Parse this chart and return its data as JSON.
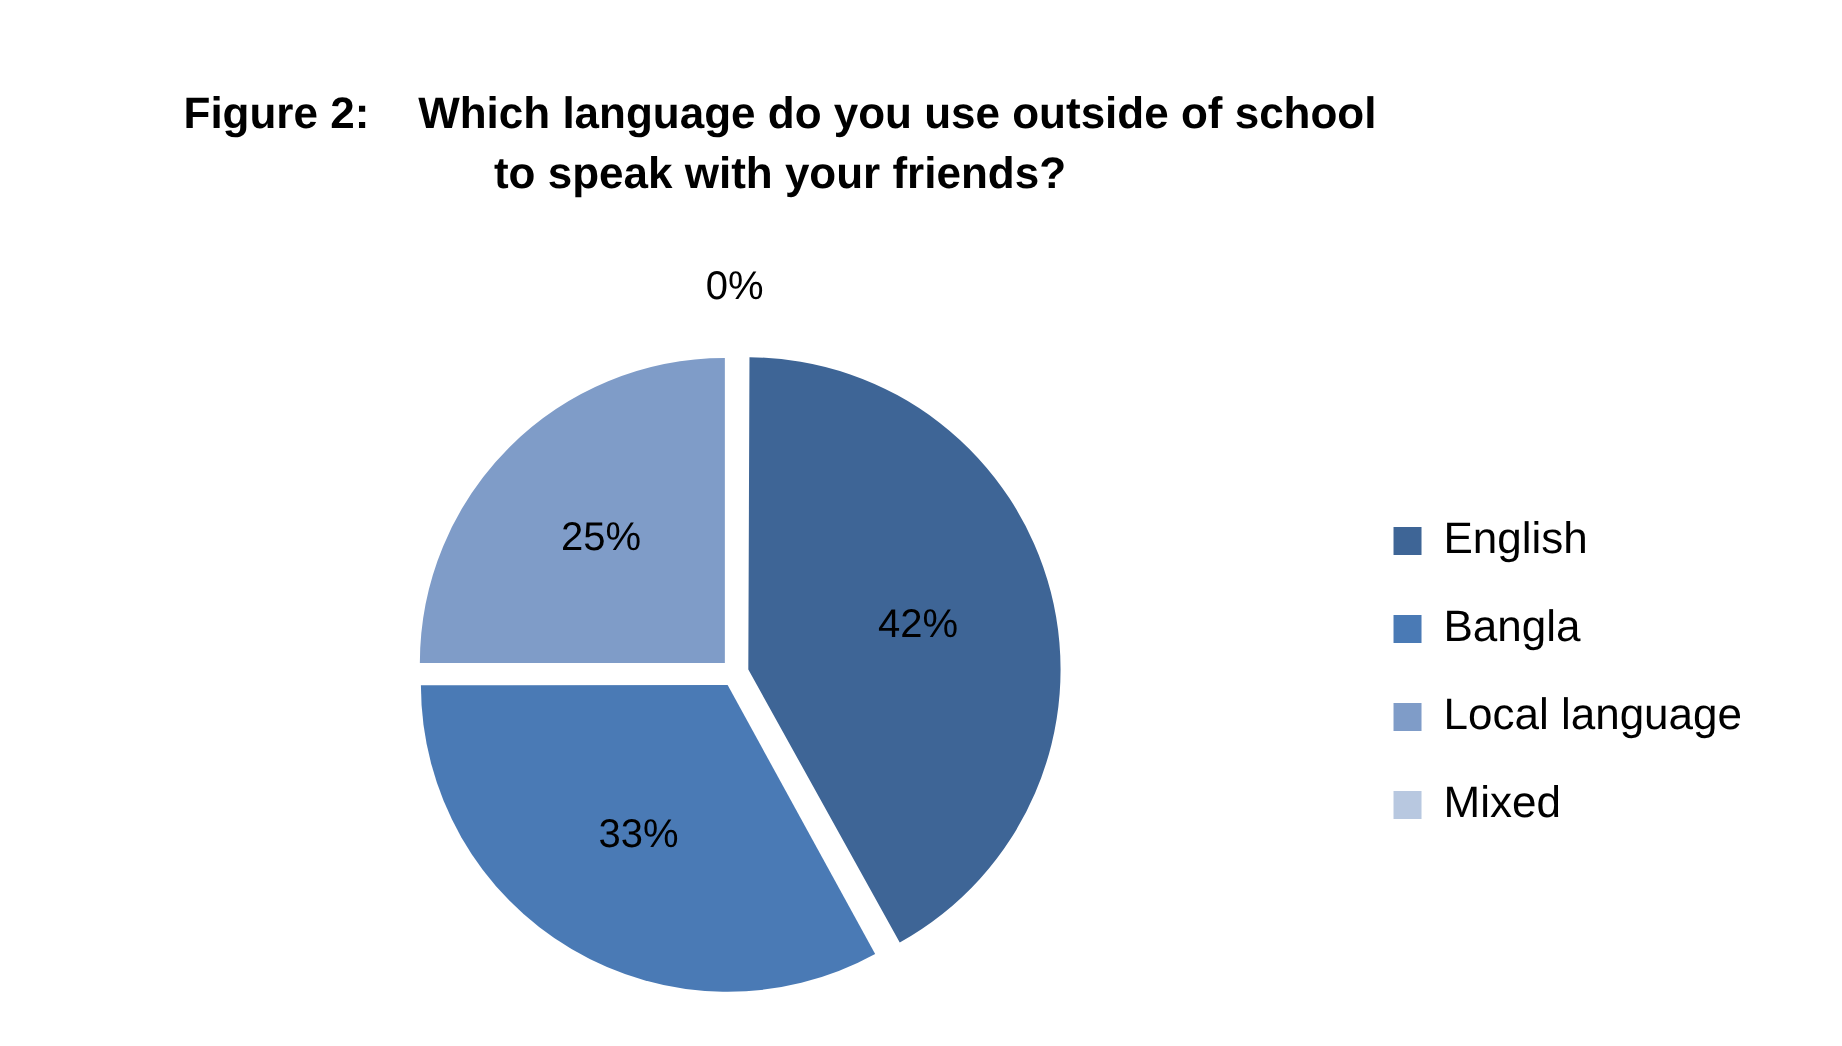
{
  "chart_data": {
    "type": "pie",
    "title": "Figure 2:    Which language do you use outside of school to speak with your friends?",
    "categories": [
      "English",
      "Bangla",
      "Local language",
      "Mixed"
    ],
    "values": [
      42,
      33,
      25,
      0
    ],
    "colors": [
      "#3e6596",
      "#4a7ab5",
      "#7f9cc8",
      "#b8c8e0"
    ],
    "value_labels": [
      "42%",
      "33%",
      "25%",
      "0%"
    ],
    "legend": "right"
  }
}
